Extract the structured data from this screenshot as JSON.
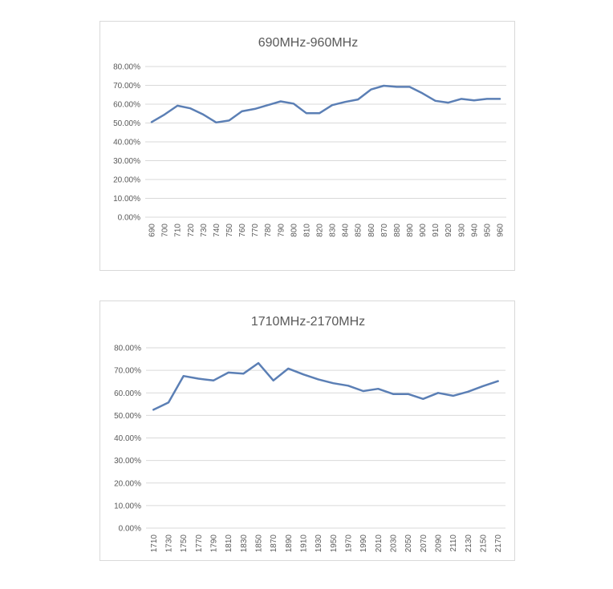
{
  "chart_data": [
    {
      "type": "line",
      "title": "690MHz-960MHz",
      "xlabel": "",
      "ylabel": "",
      "ylim": [
        0,
        0.8
      ],
      "yticks": [
        "0.00%",
        "10.00%",
        "20.00%",
        "30.00%",
        "40.00%",
        "50.00%",
        "60.00%",
        "70.00%",
        "80.00%"
      ],
      "grid": true,
      "categories": [
        "690",
        "700",
        "710",
        "720",
        "730",
        "740",
        "750",
        "760",
        "770",
        "780",
        "790",
        "800",
        "810",
        "820",
        "830",
        "840",
        "850",
        "860",
        "870",
        "880",
        "890",
        "900",
        "910",
        "920",
        "930",
        "940",
        "950",
        "960"
      ],
      "series": [
        {
          "color": "#5b7fb5",
          "values": [
            0.505,
            0.545,
            0.592,
            0.578,
            0.545,
            0.503,
            0.513,
            0.562,
            0.575,
            0.595,
            0.615,
            0.603,
            0.552,
            0.552,
            0.595,
            0.612,
            0.625,
            0.678,
            0.698,
            0.692,
            0.692,
            0.658,
            0.618,
            0.608,
            0.628,
            0.62,
            0.628,
            0.628
          ]
        }
      ]
    },
    {
      "type": "line",
      "title": "1710MHz-2170MHz",
      "xlabel": "",
      "ylabel": "",
      "ylim": [
        0,
        0.8
      ],
      "yticks": [
        "0.00%",
        "10.00%",
        "20.00%",
        "30.00%",
        "40.00%",
        "50.00%",
        "60.00%",
        "70.00%",
        "80.00%"
      ],
      "grid": true,
      "categories": [
        "1710",
        "1730",
        "1750",
        "1770",
        "1790",
        "1810",
        "1830",
        "1850",
        "1870",
        "1890",
        "1910",
        "1930",
        "1950",
        "1970",
        "1990",
        "2010",
        "2030",
        "2050",
        "2070",
        "2090",
        "2110",
        "2130",
        "2150",
        "2170"
      ],
      "series": [
        {
          "color": "#5b7fb5",
          "values": [
            0.525,
            0.557,
            0.675,
            0.663,
            0.655,
            0.69,
            0.685,
            0.732,
            0.655,
            0.708,
            0.682,
            0.66,
            0.643,
            0.632,
            0.608,
            0.618,
            0.595,
            0.595,
            0.573,
            0.6,
            0.587,
            0.605,
            0.63,
            0.652
          ]
        }
      ]
    }
  ]
}
